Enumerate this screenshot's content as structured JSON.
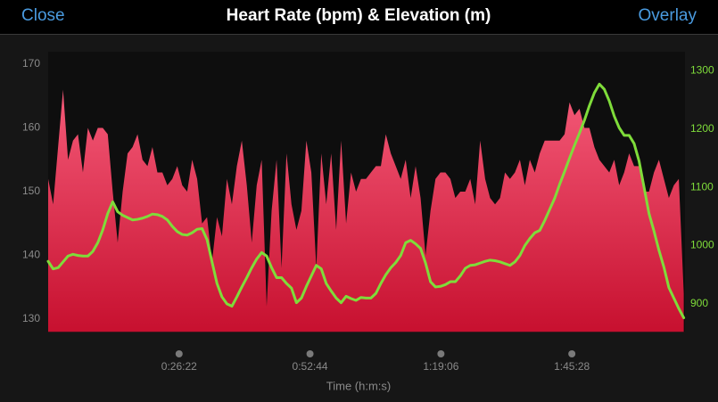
{
  "header": {
    "close": "Close",
    "title": "Heart Rate (bpm) & Elevation (m)",
    "overlay": "Overlay"
  },
  "chart_data": {
    "type": "area",
    "x_label": "Time (h:m:s)",
    "x": [
      0,
      60,
      120,
      180,
      240,
      300,
      360,
      420,
      480,
      540,
      600,
      660,
      720,
      780,
      840,
      900,
      960,
      1020,
      1080,
      1140,
      1200,
      1260,
      1320,
      1380,
      1440,
      1500,
      1560,
      1620,
      1680,
      1740,
      1800,
      1860,
      1920,
      1980,
      2040,
      2100,
      2160,
      2220,
      2280,
      2340,
      2400,
      2460,
      2520,
      2580,
      2640,
      2700,
      2760,
      2820,
      2880,
      2940,
      3000,
      3060,
      3120,
      3180,
      3240,
      3300,
      3360,
      3420,
      3480,
      3540,
      3600,
      3660,
      3720,
      3780,
      3840,
      3900,
      3960,
      4020,
      4080,
      4140,
      4200,
      4260,
      4320,
      4380,
      4440,
      4500,
      4560,
      4620,
      4680,
      4740,
      4800,
      4860,
      4920,
      4980,
      5040,
      5100,
      5160,
      5220,
      5280,
      5340,
      5400,
      5460,
      5520,
      5580,
      5640,
      5700,
      5760,
      5820,
      5880,
      5940,
      6000,
      6060,
      6120,
      6180,
      6240,
      6300,
      6360,
      6420,
      6480,
      6540,
      6600,
      6660,
      6720,
      6780,
      6840,
      6900,
      6960,
      7020,
      7080,
      7140,
      7200,
      7260,
      7320,
      7380,
      7440,
      7500,
      7560,
      7620,
      7680
    ],
    "series": [
      {
        "type": "area",
        "color": "#e8294d",
        "values": [
          152,
          148,
          157,
          166,
          155,
          158,
          159,
          153,
          160,
          158,
          160,
          160,
          159,
          150,
          142,
          150,
          156,
          157,
          159,
          155,
          154,
          157,
          153,
          153,
          151,
          152,
          154,
          151,
          150,
          155,
          152,
          145,
          146,
          139,
          146,
          143,
          152,
          148,
          154,
          158,
          151,
          142,
          151,
          155,
          132,
          147,
          155,
          138,
          156,
          148,
          144,
          147,
          158,
          153,
          138,
          156,
          148,
          156,
          144,
          158,
          145,
          153,
          150,
          152,
          152,
          153,
          154,
          154,
          159,
          156,
          154,
          152,
          155,
          149,
          154,
          149,
          140,
          147,
          152,
          153,
          153,
          152,
          149,
          150,
          150,
          152,
          148,
          158,
          152,
          149,
          148,
          149,
          153,
          152,
          153,
          155,
          151,
          155,
          153,
          156,
          158,
          158,
          158,
          158,
          159,
          164,
          162,
          163,
          160,
          160,
          157,
          155,
          154,
          153,
          155,
          151,
          153,
          156,
          154,
          154,
          150,
          150,
          153,
          155,
          152,
          149,
          151,
          152,
          134
        ]
      },
      {
        "type": "line",
        "axis": "y2",
        "color": "#7fdc3a",
        "values": [
          973,
          960,
          962,
          972,
          982,
          985,
          983,
          982,
          982,
          990,
          1005,
          1027,
          1055,
          1075,
          1058,
          1052,
          1048,
          1044,
          1045,
          1047,
          1050,
          1054,
          1053,
          1050,
          1044,
          1033,
          1024,
          1019,
          1018,
          1022,
          1028,
          1029,
          1010,
          972,
          935,
          912,
          900,
          896,
          912,
          929,
          945,
          962,
          977,
          988,
          982,
          962,
          945,
          945,
          935,
          927,
          902,
          910,
          930,
          948,
          966,
          960,
          935,
          922,
          910,
          902,
          913,
          909,
          906,
          911,
          910,
          910,
          918,
          935,
          950,
          962,
          971,
          983,
          1005,
          1009,
          1003,
          995,
          970,
          938,
          929,
          930,
          933,
          938,
          938,
          948,
          961,
          966,
          967,
          970,
          973,
          975,
          974,
          972,
          969,
          966,
          972,
          983,
          1000,
          1012,
          1022,
          1026,
          1043,
          1062,
          1081,
          1105,
          1127,
          1150,
          1172,
          1193,
          1215,
          1240,
          1262,
          1277,
          1268,
          1248,
          1222,
          1202,
          1189,
          1189,
          1175,
          1145,
          1100,
          1055,
          1025,
          992,
          963,
          928,
          910,
          892,
          876
        ]
      }
    ],
    "xlim": [
      0,
      7695
    ],
    "xticks": [
      {
        "value": 1582,
        "label": "0:26:22"
      },
      {
        "value": 3164,
        "label": "0:52:44"
      },
      {
        "value": 4746,
        "label": "1:19:06"
      },
      {
        "value": 6328,
        "label": "1:45:28"
      }
    ],
    "ylim": [
      128,
      172
    ],
    "yticks": [
      130,
      140,
      150,
      160,
      170
    ],
    "y2lim": [
      852,
      1333
    ],
    "y2ticks": [
      900,
      1000,
      1100,
      1200,
      1300
    ],
    "y2_color": "#7fdc3a"
  }
}
